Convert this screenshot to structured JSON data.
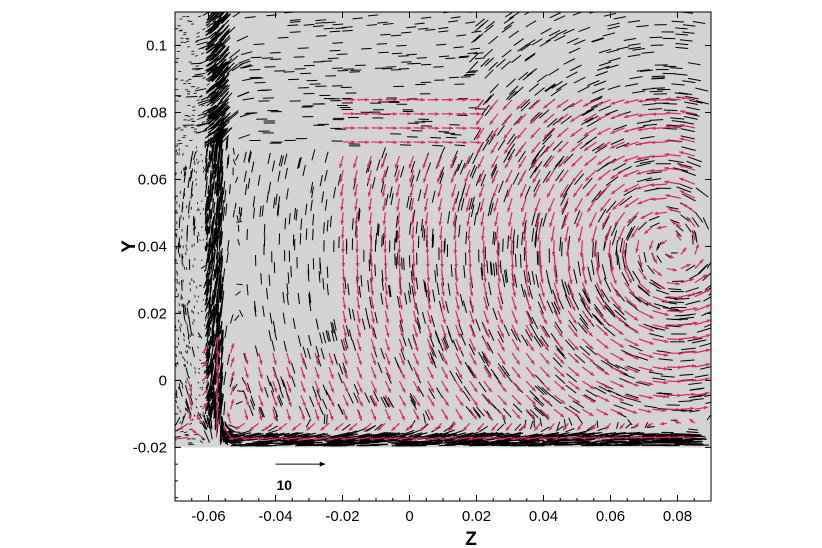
{
  "chart_data": {
    "type": "vector-field",
    "xlabel": "Z",
    "ylabel": "Y",
    "xlim": [
      -0.07,
      0.09
    ],
    "ylim": [
      -0.036,
      0.11
    ],
    "x_ticks": [
      -0.06,
      -0.04,
      -0.02,
      0,
      0.02,
      0.04,
      0.06,
      0.08
    ],
    "x_tick_labels": [
      "-0.06",
      "-0.04",
      "-0.02",
      "0",
      "0.02",
      "0.04",
      "0.06",
      "0.08"
    ],
    "y_ticks": [
      -0.02,
      0,
      0.02,
      0.04,
      0.06,
      0.08,
      0.1
    ],
    "y_tick_labels": [
      "-0.02",
      "0",
      "0.02",
      "0.04",
      "0.06",
      "0.08",
      "0.1"
    ],
    "domain_region": {
      "z_range": [
        -0.07,
        0.09
      ],
      "y_range": [
        -0.02,
        0.11
      ],
      "fill": "#d3d3d3"
    },
    "wall_z": -0.057,
    "floor_y": -0.02,
    "vortex_center": {
      "z": 0.078,
      "y": 0.04
    },
    "reference_vector": {
      "label": "10",
      "z_start": -0.04,
      "z_end": -0.025,
      "y": -0.025
    },
    "series": [
      {
        "color": "#000000"
      },
      {
        "color": "#e0245e"
      }
    ]
  }
}
